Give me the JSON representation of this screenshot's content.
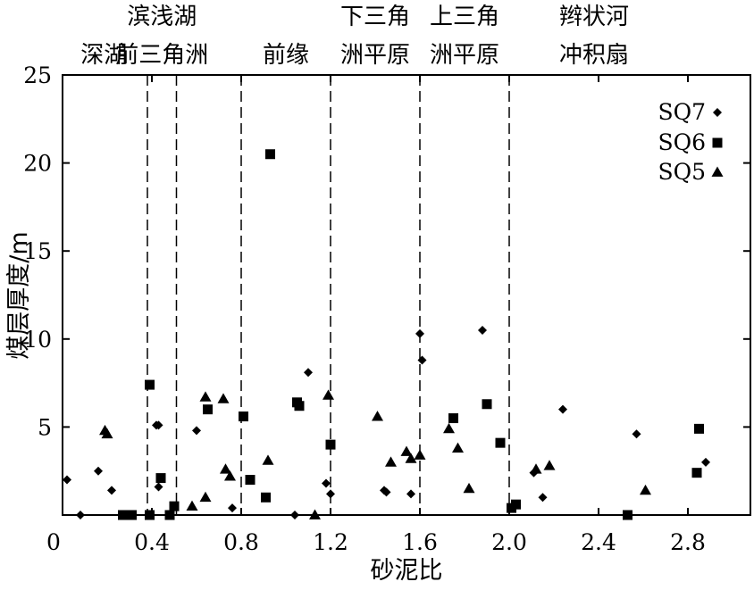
{
  "chart_data": {
    "type": "scatter",
    "xlabel": "砂泥比",
    "ylabel": "煤层厚度/m",
    "xlim": [
      0,
      2.9
    ],
    "ylim": [
      0,
      25
    ],
    "xticks": [
      0,
      0.4,
      0.8,
      1.2,
      1.6,
      2.0,
      2.4,
      2.8
    ],
    "xtick_labels": [
      "0",
      "0.4",
      "0.8",
      "1.2",
      "1.6",
      "2.0",
      "2.4",
      "2.8"
    ],
    "yticks": [
      5,
      10,
      15,
      20,
      25
    ],
    "ytick_labels": [
      "5",
      "10",
      "15",
      "20",
      "25"
    ],
    "boundaries": [
      0.38,
      0.51,
      0.8,
      1.2,
      1.6,
      2.0
    ],
    "regions": [
      {
        "x": 0.185,
        "lines": [
          "深湖"
        ]
      },
      {
        "x": 0.445,
        "lines": [
          "滨浅湖",
          "前三角洲"
        ]
      },
      {
        "x": 1.0,
        "lines": [
          "前缘"
        ]
      },
      {
        "x": 1.4,
        "lines": [
          "下三角",
          "洲平原"
        ]
      },
      {
        "x": 1.8,
        "lines": [
          "上三角",
          "洲平原"
        ]
      },
      {
        "x": 2.38,
        "lines": [
          "辫状河",
          "冲积扇"
        ]
      }
    ],
    "legend_position": "top-right",
    "series": [
      {
        "name": "SQ7",
        "marker": "diamond",
        "points": [
          [
            0.02,
            2.0
          ],
          [
            0.08,
            0.0
          ],
          [
            0.16,
            2.5
          ],
          [
            0.22,
            1.4
          ],
          [
            0.42,
            5.1
          ],
          [
            0.43,
            5.1
          ],
          [
            0.43,
            1.6
          ],
          [
            0.6,
            4.8
          ],
          [
            0.76,
            0.4
          ],
          [
            1.04,
            0.0
          ],
          [
            1.1,
            8.1
          ],
          [
            1.18,
            1.8
          ],
          [
            1.2,
            1.2
          ],
          [
            1.44,
            1.4
          ],
          [
            1.45,
            1.3
          ],
          [
            1.56,
            1.2
          ],
          [
            1.6,
            10.3
          ],
          [
            1.61,
            8.8
          ],
          [
            1.88,
            10.5
          ],
          [
            2.11,
            2.4
          ],
          [
            2.15,
            1.0
          ],
          [
            2.24,
            6.0
          ],
          [
            2.57,
            4.6
          ],
          [
            2.88,
            3.0
          ]
        ]
      },
      {
        "name": "SQ6",
        "marker": "square",
        "points": [
          [
            0.27,
            0.0
          ],
          [
            0.31,
            0.0
          ],
          [
            0.39,
            7.4
          ],
          [
            0.39,
            0.0
          ],
          [
            0.44,
            2.1
          ],
          [
            0.48,
            0.0
          ],
          [
            0.5,
            0.5
          ],
          [
            0.65,
            6.0
          ],
          [
            0.81,
            5.6
          ],
          [
            0.84,
            2.0
          ],
          [
            0.91,
            1.0
          ],
          [
            0.93,
            20.5
          ],
          [
            1.05,
            6.4
          ],
          [
            1.06,
            6.2
          ],
          [
            1.2,
            4.0
          ],
          [
            1.75,
            5.5
          ],
          [
            1.9,
            6.3
          ],
          [
            1.96,
            4.1
          ],
          [
            2.01,
            0.4
          ],
          [
            2.03,
            0.6
          ],
          [
            2.53,
            0.0
          ],
          [
            2.84,
            2.4
          ],
          [
            2.85,
            4.9
          ]
        ]
      },
      {
        "name": "SQ5",
        "marker": "triangle",
        "points": [
          [
            0.19,
            4.8
          ],
          [
            0.2,
            4.6
          ],
          [
            0.58,
            0.5
          ],
          [
            0.64,
            1.0
          ],
          [
            0.64,
            6.7
          ],
          [
            0.72,
            6.6
          ],
          [
            0.73,
            2.6
          ],
          [
            0.75,
            2.2
          ],
          [
            0.92,
            3.1
          ],
          [
            1.13,
            0.0
          ],
          [
            1.19,
            6.8
          ],
          [
            1.41,
            5.6
          ],
          [
            1.47,
            3.0
          ],
          [
            1.54,
            3.6
          ],
          [
            1.56,
            3.2
          ],
          [
            1.6,
            3.4
          ],
          [
            1.73,
            4.9
          ],
          [
            1.77,
            3.8
          ],
          [
            1.82,
            1.5
          ],
          [
            2.12,
            2.6
          ],
          [
            2.18,
            2.8
          ],
          [
            2.61,
            1.4
          ]
        ]
      }
    ]
  }
}
